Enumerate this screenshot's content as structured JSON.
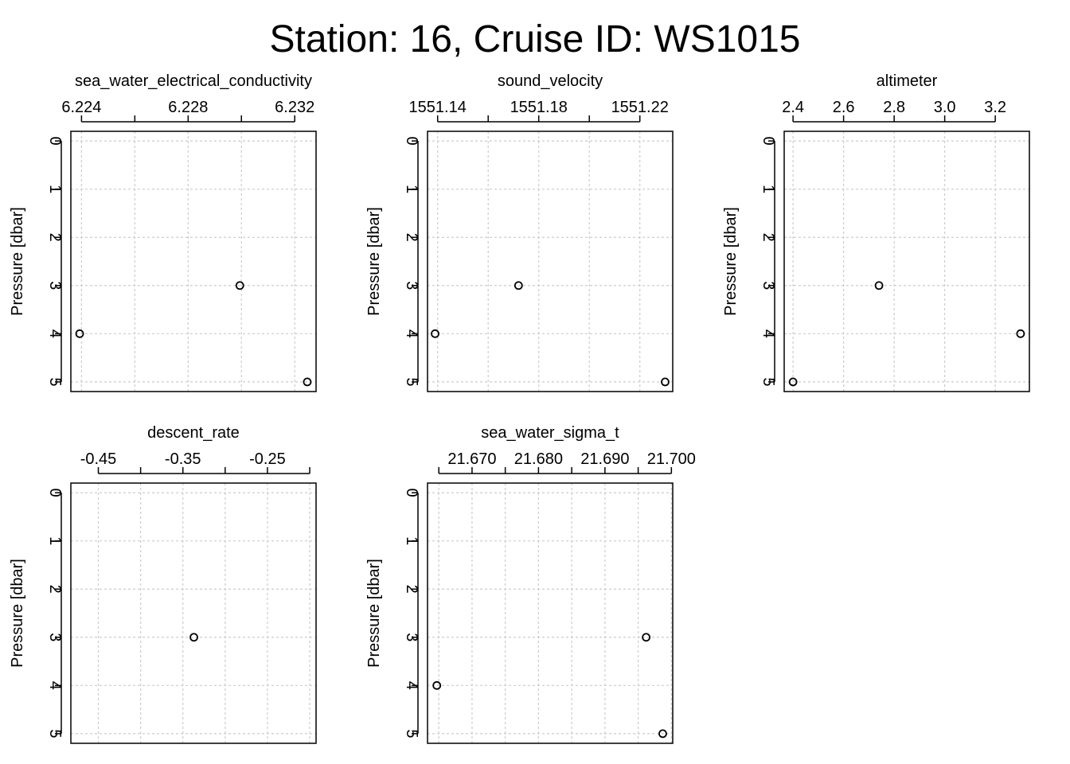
{
  "title": "Station: 16, Cruise ID: WS1015",
  "colors": {
    "grid": "#cccccc",
    "axis": "#000000",
    "point": "#000000"
  },
  "chart_data": [
    {
      "type": "scatter",
      "title": "sea_water_electrical_conductivity",
      "ylabel": "Pressure [dbar]",
      "xlim": [
        6.2236,
        6.2328
      ],
      "xticks": [
        6.224,
        6.226,
        6.228,
        6.23,
        6.232
      ],
      "xtick_labels": [
        "6.224",
        "",
        "6.228",
        "",
        "6.232"
      ],
      "ylim": [
        5.2,
        -0.2
      ],
      "yticks": [
        0,
        1,
        2,
        3,
        4,
        5
      ],
      "ytick_labels": [
        "0",
        "1",
        "2",
        "3",
        "4",
        "5"
      ],
      "points": [
        {
          "x": 6.22994,
          "y": 3
        },
        {
          "x": 6.22393,
          "y": 4
        },
        {
          "x": 6.23247,
          "y": 5
        }
      ]
    },
    {
      "type": "scatter",
      "title": "sound_velocity",
      "ylabel": "Pressure [dbar]",
      "xlim": [
        1551.136,
        1551.233
      ],
      "xticks": [
        1551.14,
        1551.16,
        1551.18,
        1551.2,
        1551.22
      ],
      "xtick_labels": [
        "1551.14",
        "",
        "1551.18",
        "",
        "1551.22"
      ],
      "ylim": [
        5.2,
        -0.2
      ],
      "yticks": [
        0,
        1,
        2,
        3,
        4,
        5
      ],
      "ytick_labels": [
        "0",
        "1",
        "2",
        "3",
        "4",
        "5"
      ],
      "points": [
        {
          "x": 1551.172,
          "y": 3
        },
        {
          "x": 1551.139,
          "y": 4
        },
        {
          "x": 1551.23,
          "y": 5
        }
      ]
    },
    {
      "type": "scatter",
      "title": "altimeter",
      "ylabel": "Pressure [dbar]",
      "xlim": [
        2.365,
        3.335
      ],
      "xticks": [
        2.4,
        2.6,
        2.8,
        3.0,
        3.2
      ],
      "xtick_labels": [
        "2.4",
        "2.6",
        "2.8",
        "3.0",
        "3.2"
      ],
      "ylim": [
        5.2,
        -0.2
      ],
      "yticks": [
        0,
        1,
        2,
        3,
        4,
        5
      ],
      "ytick_labels": [
        "0",
        "1",
        "2",
        "3",
        "4",
        "5"
      ],
      "points": [
        {
          "x": 2.74,
          "y": 3
        },
        {
          "x": 3.3,
          "y": 4
        },
        {
          "x": 2.4,
          "y": 5
        }
      ]
    },
    {
      "type": "scatter",
      "title": "descent_rate",
      "ylabel": "Pressure [dbar]",
      "xlim": [
        -0.4825,
        -0.1925
      ],
      "xticks": [
        -0.45,
        -0.4,
        -0.35,
        -0.3,
        -0.25,
        -0.2
      ],
      "xtick_labels": [
        "-0.45",
        "",
        "-0.35",
        "",
        "-0.25",
        ""
      ],
      "ylim": [
        5.2,
        -0.2
      ],
      "yticks": [
        0,
        1,
        2,
        3,
        4,
        5
      ],
      "ytick_labels": [
        "0",
        "1",
        "2",
        "3",
        "4",
        "5"
      ],
      "points": [
        {
          "x": -0.337,
          "y": 3
        }
      ]
    },
    {
      "type": "scatter",
      "title": "sea_water_sigma_t",
      "ylabel": "Pressure [dbar]",
      "xlim": [
        21.6633,
        21.7002
      ],
      "xticks": [
        21.665,
        21.67,
        21.675,
        21.68,
        21.685,
        21.69,
        21.695,
        21.7
      ],
      "xtick_labels": [
        "",
        "21.670",
        "",
        "21.680",
        "",
        "21.690",
        "",
        "21.700"
      ],
      "ylim": [
        5.2,
        -0.2
      ],
      "yticks": [
        0,
        1,
        2,
        3,
        4,
        5
      ],
      "ytick_labels": [
        "0",
        "1",
        "2",
        "3",
        "4",
        "5"
      ],
      "points": [
        {
          "x": 21.6962,
          "y": 3
        },
        {
          "x": 21.6647,
          "y": 4
        },
        {
          "x": 21.6987,
          "y": 5
        }
      ]
    }
  ]
}
